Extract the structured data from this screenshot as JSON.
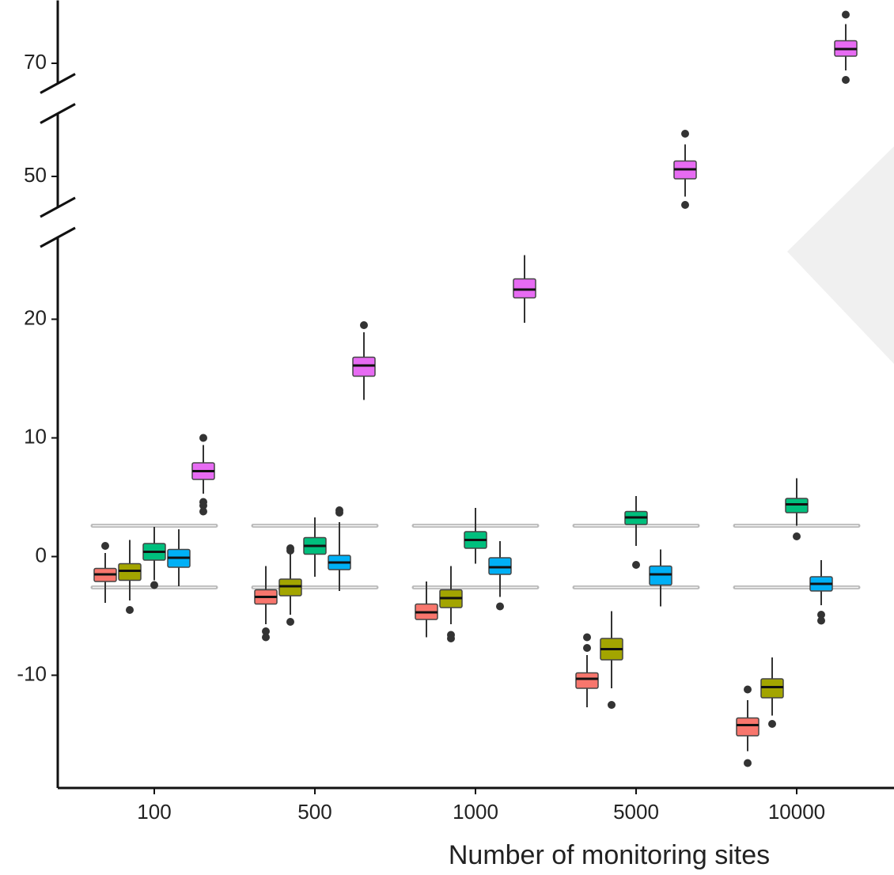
{
  "chart_data": {
    "type": "boxplot",
    "x_label": "Number of monitoring sites",
    "categories": [
      "100",
      "500",
      "1000",
      "5000",
      "10000"
    ],
    "ylims": [
      [
        -19.5,
        26.9
      ],
      [
        47.4,
        55.3
      ],
      [
        68.3,
        75.3
      ]
    ],
    "yticks": [
      -10,
      0,
      10,
      20,
      50,
      70
    ],
    "reference_lines": [
      2.6,
      -2.6
    ],
    "series": [
      {
        "color": "#f8766d",
        "boxes": [
          {
            "min": -3.9,
            "q1": -2.1,
            "median": -1.5,
            "q3": -1.0,
            "max": 0.3,
            "outliers": [
              0.9
            ]
          },
          {
            "min": -5.7,
            "q1": -4.0,
            "median": -3.4,
            "q3": -2.8,
            "max": -0.8,
            "outliers": [
              -6.3,
              -6.8
            ]
          },
          {
            "min": -6.8,
            "q1": -5.3,
            "median": -4.7,
            "q3": -4.0,
            "max": -2.1,
            "outliers": []
          },
          {
            "min": -12.7,
            "q1": -11.1,
            "median": -10.3,
            "q3": -9.8,
            "max": -8.3,
            "outliers": [
              -6.8,
              -7.7
            ]
          },
          {
            "min": -16.4,
            "q1": -15.1,
            "median": -14.2,
            "q3": -13.6,
            "max": -12.1,
            "outliers": [
              -11.2,
              -17.4
            ]
          }
        ]
      },
      {
        "color": "#a3a500",
        "boxes": [
          {
            "min": -3.7,
            "q1": -2.0,
            "median": -1.2,
            "q3": -0.6,
            "max": 1.4,
            "outliers": [
              -4.5
            ]
          },
          {
            "min": -4.9,
            "q1": -3.3,
            "median": -2.5,
            "q3": -1.9,
            "max": 0.3,
            "outliers": [
              0.7,
              0.5,
              -5.5
            ]
          },
          {
            "min": -5.7,
            "q1": -4.3,
            "median": -3.5,
            "q3": -2.8,
            "max": -0.8,
            "outliers": [
              -6.6,
              -6.9
            ]
          },
          {
            "min": -11.1,
            "q1": -8.7,
            "median": -7.8,
            "q3": -6.9,
            "max": -4.6,
            "outliers": [
              -12.5
            ]
          },
          {
            "min": -13.4,
            "q1": -11.9,
            "median": -11.0,
            "q3": -10.3,
            "max": -8.5,
            "outliers": [
              -14.1
            ]
          }
        ]
      },
      {
        "color": "#00bf7d",
        "boxes": [
          {
            "min": -2.0,
            "q1": -0.3,
            "median": 0.4,
            "q3": 1.1,
            "max": 2.5,
            "outliers": [
              -2.4
            ]
          },
          {
            "min": -1.7,
            "q1": 0.2,
            "median": 0.9,
            "q3": 1.6,
            "max": 3.3,
            "outliers": []
          },
          {
            "min": -0.6,
            "q1": 0.7,
            "median": 1.4,
            "q3": 2.1,
            "max": 4.1,
            "outliers": []
          },
          {
            "min": 0.9,
            "q1": 2.7,
            "median": 3.3,
            "q3": 3.8,
            "max": 5.1,
            "outliers": [
              -0.7
            ]
          },
          {
            "min": 2.6,
            "q1": 3.7,
            "median": 4.4,
            "q3": 4.9,
            "max": 6.6,
            "outliers": [
              1.7
            ]
          }
        ]
      },
      {
        "color": "#00b0f6",
        "boxes": [
          {
            "min": -2.5,
            "q1": -0.9,
            "median": -0.1,
            "q3": 0.6,
            "max": 2.3,
            "outliers": []
          },
          {
            "min": -2.9,
            "q1": -1.1,
            "median": -0.5,
            "q3": 0.1,
            "max": 2.9,
            "outliers": [
              3.9,
              3.7
            ]
          },
          {
            "min": -3.4,
            "q1": -1.5,
            "median": -0.9,
            "q3": -0.1,
            "max": 1.3,
            "outliers": [
              -4.2
            ]
          },
          {
            "min": -4.2,
            "q1": -2.4,
            "median": -1.5,
            "q3": -0.8,
            "max": 0.6,
            "outliers": []
          },
          {
            "min": -4.1,
            "q1": -2.9,
            "median": -2.3,
            "q3": -1.7,
            "max": -0.3,
            "outliers": [
              -4.9,
              -5.4
            ]
          }
        ]
      },
      {
        "color": "#e76bf3",
        "boxes": [
          {
            "min": 5.3,
            "q1": 6.5,
            "median": 7.2,
            "q3": 7.9,
            "max": 9.4,
            "outliers": [
              10.0,
              4.6,
              4.3,
              3.8
            ]
          },
          {
            "min": 13.2,
            "q1": 15.2,
            "median": 16.1,
            "q3": 16.8,
            "max": 18.9,
            "outliers": [
              19.5
            ]
          },
          {
            "min": 19.7,
            "q1": 21.8,
            "median": 22.5,
            "q3": 23.4,
            "max": 25.4,
            "outliers": []
          },
          {
            "min": 48.3,
            "q1": 49.8,
            "median": 50.6,
            "q3": 51.3,
            "max": 52.7,
            "outliers": [
              53.6,
              47.6
            ]
          },
          {
            "min": 69.4,
            "q1": 70.6,
            "median": 71.2,
            "q3": 71.9,
            "max": 73.3,
            "outliers": [
              74.1,
              68.6
            ]
          }
        ]
      }
    ]
  }
}
